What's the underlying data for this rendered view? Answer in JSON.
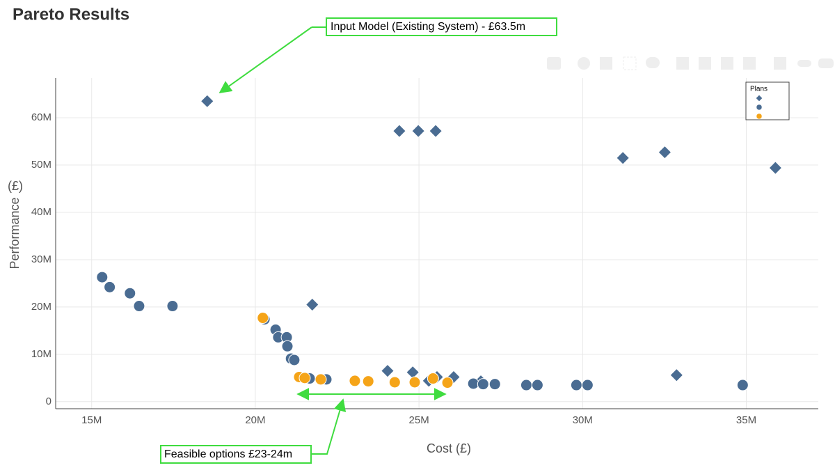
{
  "chart_data": {
    "type": "scatter",
    "title": "Pareto Results",
    "x_label": "Cost (£)",
    "y_label": "Performance",
    "y_unit": "(£)",
    "legend_title": "Plans",
    "legend": "top-right",
    "grid": true,
    "annotations": [
      "Input Model (Existing System) - £63.5m",
      "Feasible options £23-24m"
    ],
    "xlim": [
      13900000,
      37200000
    ],
    "ylim": [
      -1500000,
      68400000
    ],
    "xticks": [
      {
        "value": 15000000,
        "label": "15M"
      },
      {
        "value": 20000000,
        "label": "20M"
      },
      {
        "value": 25000000,
        "label": "25M"
      },
      {
        "value": 30000000,
        "label": "30M"
      },
      {
        "value": 35000000,
        "label": "35M"
      }
    ],
    "yticks": [
      0,
      {
        "value": 10000000,
        "label": "10M"
      },
      {
        "value": 20000000,
        "label": "20M"
      },
      {
        "value": 30000000,
        "label": "30M"
      },
      {
        "value": 40000000,
        "label": "40M"
      },
      {
        "value": 50000000,
        "label": "50M"
      },
      {
        "value": 60000000,
        "label": "60M"
      }
    ],
    "series": [
      {
        "marker": "diamond",
        "color": "#4a6c92",
        "x": [
          18530000,
          24400000,
          24980000,
          25510000,
          31230000,
          32510000,
          35890000,
          21740000,
          24040000,
          24810000,
          25300000,
          25550000,
          26060000,
          26890000,
          32870000
        ],
        "values": [
          63500000,
          57200000,
          57200000,
          57200000,
          51500000,
          52700000,
          49400000,
          20500000,
          6500000,
          6200000,
          4400000,
          5200000,
          5200000,
          4300000,
          5600000
        ]
      },
      {
        "marker": "circle",
        "color": "#4a6c92",
        "x": [
          15320000,
          15550000,
          16170000,
          16450000,
          17470000,
          20280000,
          20620000,
          20700000,
          20960000,
          20980000,
          21090000,
          21190000,
          21660000,
          22170000,
          26660000,
          26960000,
          27320000,
          28280000,
          28620000,
          29810000,
          30150000,
          34890000
        ],
        "values": [
          26300000,
          24200000,
          22900000,
          20200000,
          20200000,
          17400000,
          15200000,
          13600000,
          13600000,
          11700000,
          9100000,
          8800000,
          4900000,
          4700000,
          3800000,
          3700000,
          3700000,
          3500000,
          3500000,
          3500000,
          3500000,
          3500000
        ]
      },
      {
        "marker": "circle",
        "color": "#f5a418",
        "x": [
          20230000,
          21340000,
          21510000,
          22000000,
          23040000,
          23450000,
          24260000,
          24870000,
          25430000,
          25870000
        ],
        "values": [
          17700000,
          5200000,
          5000000,
          4700000,
          4400000,
          4300000,
          4100000,
          4100000,
          4900000,
          4000000
        ]
      }
    ]
  }
}
